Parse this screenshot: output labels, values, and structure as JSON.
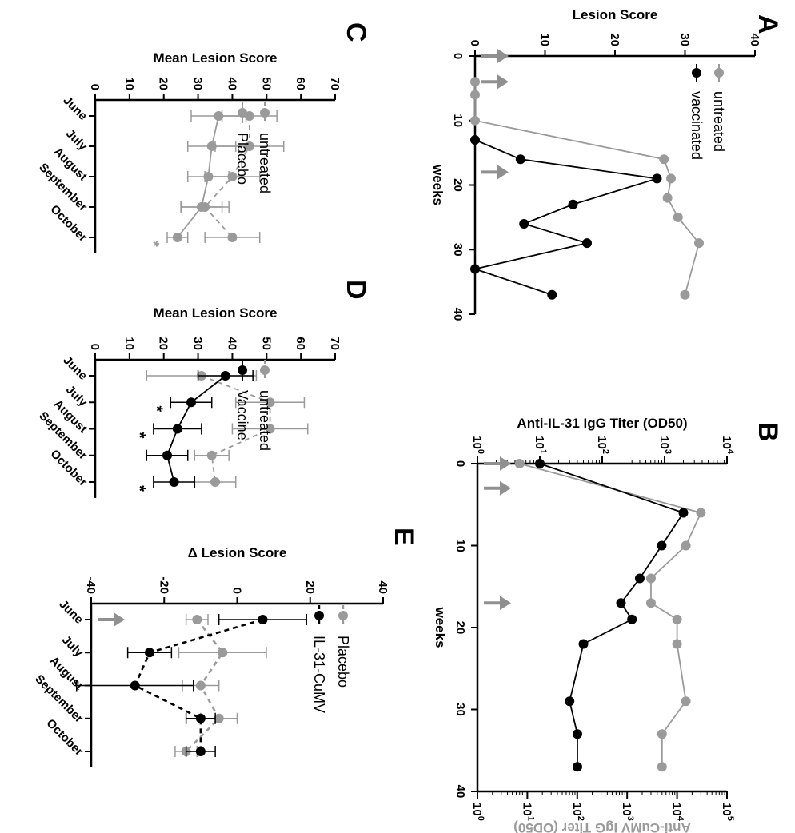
{
  "colors": {
    "black": "#000000",
    "gray": "#9a9a9a",
    "arrow": "#909090"
  },
  "chart_data": [
    {
      "panel": "A",
      "type": "line",
      "x_title": "weeks",
      "y_title": "Lesion Score",
      "xlim": [
        0,
        40
      ],
      "ylim": [
        0,
        40
      ],
      "x_ticks": [
        "0",
        "10",
        "20",
        "30",
        "40"
      ],
      "y_ticks": [
        "0",
        "10",
        "20",
        "30",
        "40"
      ],
      "arrows_at": [
        0,
        4,
        18
      ],
      "series": [
        {
          "name": "untreated",
          "color": "#9a9a9a",
          "dash": false,
          "x": [
            4,
            6,
            10,
            16,
            19,
            22,
            25,
            29,
            37
          ],
          "y": [
            0,
            0,
            0,
            27,
            28,
            27.5,
            29,
            32,
            30
          ]
        },
        {
          "name": "vaccinated",
          "color": "#000000",
          "dash": false,
          "x": [
            13,
            16,
            19,
            23,
            26,
            29,
            33,
            37
          ],
          "y": [
            0,
            6.5,
            26,
            14,
            7,
            16,
            0,
            11
          ]
        }
      ]
    },
    {
      "panel": "B",
      "type": "line",
      "x_title": "weeks",
      "y_title_left": "Anti-IL-31 IgG Titer (OD50)",
      "y_title_right": "Anti-CuMV IgG Titer (OD50)",
      "xlim": [
        0,
        40
      ],
      "x_ticks": [
        "0",
        "10",
        "20",
        "30",
        "40"
      ],
      "y_left_ticks": [
        "10^0",
        "10^1",
        "10^2",
        "10^3",
        "10^4"
      ],
      "y_right_ticks": [
        "10^0",
        "10^1",
        "10^2",
        "10^3",
        "10^4",
        "10^5"
      ],
      "arrows_at": [
        0,
        3,
        17
      ],
      "series": [
        {
          "name": "Anti-IL-31",
          "color": "#000000",
          "axis": "left",
          "log_min": 0,
          "log_max": 4,
          "x": [
            0,
            6,
            10,
            14,
            17,
            19,
            22,
            29,
            33,
            37
          ],
          "y": [
            10,
            2000,
            900,
            400,
            200,
            300,
            50,
            30,
            40,
            40
          ]
        },
        {
          "name": "Anti-CuMV",
          "color": "#9a9a9a",
          "axis": "right",
          "log_min": 0,
          "log_max": 5,
          "x": [
            0,
            6,
            10,
            14,
            17,
            19,
            22,
            29,
            33,
            37
          ],
          "y": [
            7,
            30000,
            15000,
            3000,
            3000,
            10000,
            10000,
            15000,
            5000,
            5000
          ]
        }
      ]
    },
    {
      "panel": "C",
      "type": "line",
      "y_title": "Mean Lesion Score",
      "categories": [
        "June",
        "July",
        "August",
        "September",
        "October"
      ],
      "ylim": [
        0,
        70
      ],
      "y_ticks": [
        "0",
        "10",
        "20",
        "30",
        "40",
        "50",
        "60",
        "70"
      ],
      "series": [
        {
          "name": "untreated",
          "color": "#9a9a9a",
          "dash": true,
          "values": [
            45,
            45,
            40,
            32,
            40
          ],
          "err": [
            8,
            10,
            8,
            7,
            8
          ]
        },
        {
          "name": "Placebo",
          "color": "#9a9a9a",
          "dash": false,
          "values": [
            36,
            34,
            33,
            31,
            24
          ],
          "err": [
            8,
            7,
            6,
            6,
            3
          ]
        }
      ],
      "annotations": [
        {
          "text": "*",
          "category": "October",
          "color": "#9a9a9a"
        }
      ]
    },
    {
      "panel": "D",
      "type": "line",
      "y_title": "Mean Lesion Score",
      "categories": [
        "June",
        "July",
        "August",
        "September",
        "October"
      ],
      "ylim": [
        0,
        70
      ],
      "y_ticks": [
        "0",
        "10",
        "20",
        "30",
        "40",
        "50",
        "60",
        "70"
      ],
      "series": [
        {
          "name": "untreated",
          "color": "#9a9a9a",
          "dash": true,
          "values": [
            31,
            51,
            51,
            34,
            35
          ],
          "err": [
            16,
            10,
            11,
            5,
            6
          ]
        },
        {
          "name": "Vaccine",
          "color": "#000000",
          "dash": false,
          "values": [
            38,
            28,
            24,
            21,
            23
          ],
          "err": [
            8,
            6,
            7,
            6,
            6
          ]
        }
      ],
      "annotations": [
        {
          "text": "*",
          "category": "July",
          "color": "#000000"
        },
        {
          "text": "*",
          "category": "August",
          "color": "#000000"
        },
        {
          "text": "*",
          "category": "October",
          "color": "#000000"
        }
      ]
    },
    {
      "panel": "E",
      "type": "line",
      "y_title": "Δ Lesion Score",
      "categories": [
        "June",
        "July",
        "August",
        "September",
        "October"
      ],
      "ylim": [
        -40,
        40
      ],
      "y_ticks": [
        "-40",
        "-20",
        "0",
        "20",
        "40"
      ],
      "arrows_at": [
        "June"
      ],
      "series": [
        {
          "name": "Placebo",
          "color": "#9a9a9a",
          "dash": true,
          "values": [
            -11,
            -4,
            -10,
            -5,
            -14
          ],
          "err": [
            3,
            12,
            5,
            5,
            3
          ]
        },
        {
          "name": "IL-31-CuMV",
          "color": "#000000",
          "dash": true,
          "values": [
            7,
            -24,
            -28,
            -10,
            -10
          ],
          "err": [
            12,
            6,
            16,
            4,
            4
          ]
        }
      ]
    }
  ]
}
